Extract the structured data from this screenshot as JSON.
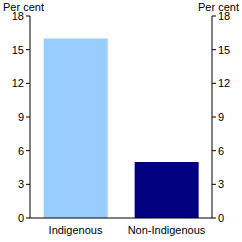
{
  "chart_data": {
    "type": "bar",
    "y_label": "Per cent",
    "y2_label": "Per cent",
    "categories": [
      "Indigenous",
      "Non-Indigenous"
    ],
    "values": [
      16,
      5
    ],
    "colors": [
      "#99ccff",
      "#000080"
    ],
    "ylim": [
      0,
      18
    ],
    "yticks": [
      0,
      3,
      6,
      9,
      12,
      15,
      18
    ],
    "y2lim": [
      0,
      18
    ],
    "y2ticks": [
      0,
      3,
      6,
      9,
      12,
      15,
      18
    ],
    "grid": false
  }
}
